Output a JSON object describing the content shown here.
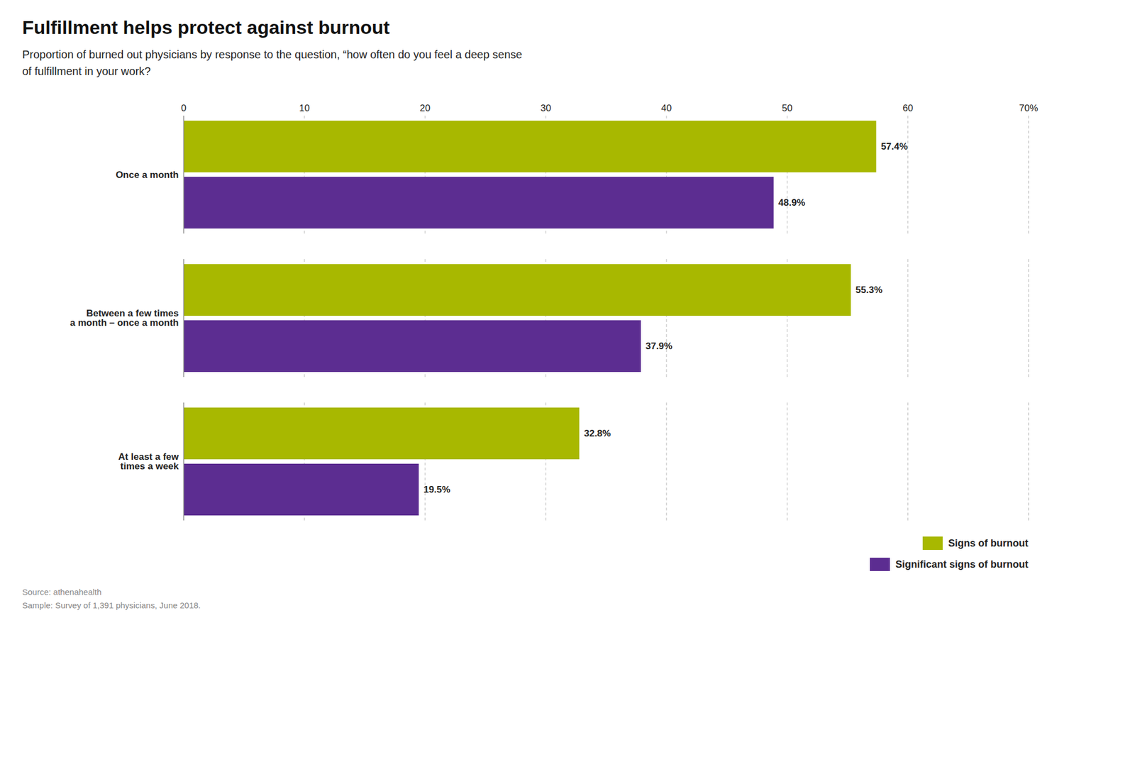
{
  "chart_data": {
    "type": "bar",
    "orientation": "horizontal",
    "title": "Fulfillment helps protect against burnout",
    "subtitle": "Proportion of burned out physicians by response to the question, “how often do you feel a deep sense\nof fulfillment in your work?",
    "categories": [
      "Once a month",
      "Between a few times\na month – once a month",
      "At least a few\ntimes a week"
    ],
    "series": [
      {
        "name": "Signs of burnout",
        "color": "#a8b800",
        "values": [
          57.4,
          55.3,
          32.8
        ],
        "value_labels": [
          "57.4%",
          "55.3%",
          "32.8%"
        ]
      },
      {
        "name": "Significant signs of burnout",
        "color": "#5c2d91",
        "values": [
          48.9,
          37.9,
          19.5
        ],
        "value_labels": [
          "48.9%",
          "37.9%",
          "19.5%"
        ]
      }
    ],
    "xlim": [
      0,
      70
    ],
    "xticks": [
      0,
      10,
      20,
      30,
      40,
      50,
      60,
      {
        "value": 70,
        "label": "70%"
      }
    ],
    "grid": true,
    "data_labels": true,
    "legend": "lower right",
    "source": "Source: athenahealth\nSample: Survey of 1,391 physicians, June 2018."
  }
}
